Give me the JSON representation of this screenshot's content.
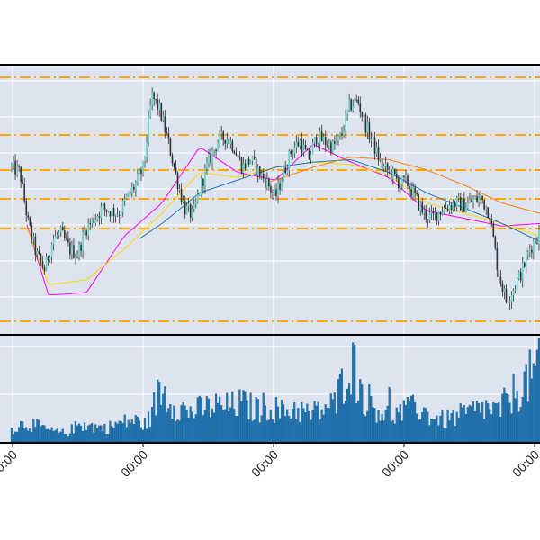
{
  "chart_data": [
    {
      "type": "candlestick",
      "panel": "price",
      "grid": true,
      "title": "",
      "xlabel": "",
      "ylabel": "",
      "up_color": "#5fd3c7",
      "down_color": "#333333",
      "horizontal_levels": {
        "color": "#ffa500",
        "style": "dash-dot",
        "count": 7
      },
      "moving_averages": [
        {
          "color": "#ff00ff",
          "values": [
            0.6,
            0.12,
            0.13,
            0.35,
            0.48,
            0.7,
            0.6,
            0.57,
            0.71,
            0.64,
            0.58,
            0.45,
            0.42,
            0.39,
            0.4
          ]
        },
        {
          "color": "#ffd700",
          "values": [
            0.55,
            0.16,
            0.18,
            0.3,
            0.44,
            0.6,
            0.58,
            0.62,
            0.64,
            0.63,
            0.59,
            0.48,
            0.44,
            0.4,
            0.35
          ]
        },
        {
          "color": "#1f77b4",
          "values": [
            0.58,
            0.2,
            0.24,
            0.3,
            0.4,
            0.52,
            0.57,
            0.62,
            0.64,
            0.65,
            0.6,
            0.52,
            0.46,
            0.4,
            0.33
          ]
        },
        {
          "color": "#ff7f0e",
          "values": [
            0.58,
            0.24,
            0.27,
            0.32,
            0.4,
            0.48,
            0.53,
            0.57,
            0.62,
            0.66,
            0.65,
            0.61,
            0.55,
            0.48,
            0.44
          ]
        }
      ],
      "price_path": [
        0.62,
        0.6,
        0.4,
        0.28,
        0.22,
        0.34,
        0.36,
        0.3,
        0.28,
        0.38,
        0.42,
        0.46,
        0.45,
        0.44,
        0.5,
        0.55,
        0.62,
        0.9,
        0.84,
        0.72,
        0.58,
        0.46,
        0.43,
        0.55,
        0.65,
        0.72,
        0.74,
        0.7,
        0.62,
        0.65,
        0.6,
        0.56,
        0.5,
        0.6,
        0.69,
        0.72,
        0.65,
        0.74,
        0.72,
        0.7,
        0.74,
        0.86,
        0.88,
        0.78,
        0.7,
        0.62,
        0.6,
        0.56,
        0.56,
        0.5,
        0.44,
        0.42,
        0.45,
        0.47,
        0.48,
        0.47,
        0.49,
        0.5,
        0.44,
        0.22,
        0.1,
        0.15,
        0.22,
        0.31,
        0.36
      ]
    },
    {
      "type": "bar",
      "panel": "volume",
      "grid": true,
      "color": "#1f77b4",
      "edge_color": "#0d3d66",
      "x_tick_labels": [
        "00:00",
        "00:00",
        "00:00",
        "00:00",
        "00:00"
      ],
      "x_tick_rotation": -45,
      "volume_profile": [
        0.15,
        0.22,
        0.18,
        0.12,
        0.1,
        0.2,
        0.18,
        0.16,
        0.22,
        0.25,
        0.2,
        0.62,
        0.45,
        0.35,
        0.38,
        0.42,
        0.4,
        0.45,
        0.38,
        0.42,
        0.35,
        0.4,
        0.32,
        0.38,
        0.45,
        1.0,
        0.55,
        0.4,
        0.3,
        0.35,
        0.4,
        0.3,
        0.25,
        0.3,
        0.35,
        0.4,
        0.35,
        0.55,
        0.7,
        0.85
      ]
    }
  ]
}
